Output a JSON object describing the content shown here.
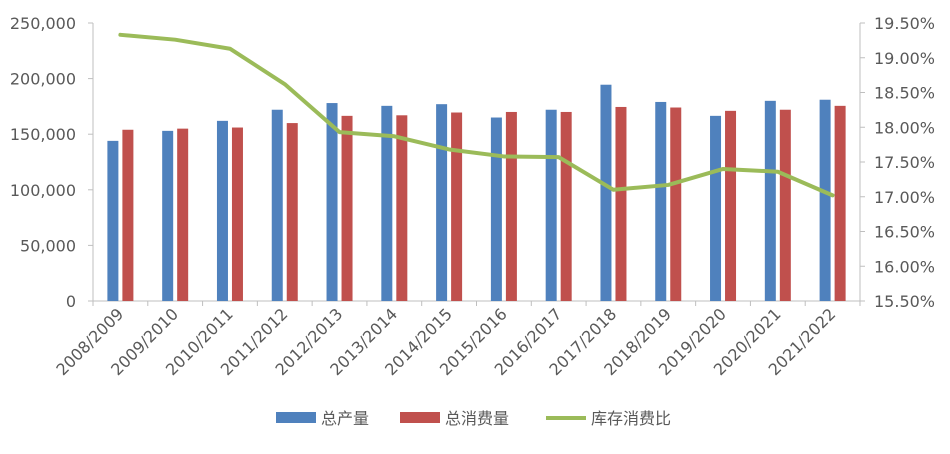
{
  "chart_data": {
    "type": "bar",
    "categories": [
      "2008/2009",
      "2009/2010",
      "2010/2011",
      "2011/2012",
      "2012/2013",
      "2013/2014",
      "2014/2015",
      "2015/2016",
      "2016/2017",
      "2017/2018",
      "2018/2019",
      "2019/2020",
      "2020/2021",
      "2021/2022"
    ],
    "series": [
      {
        "name": "总产量",
        "type": "bar",
        "axis": "left",
        "color": "#4F81BD",
        "values": [
          144000,
          153000,
          162000,
          172000,
          178000,
          175500,
          177000,
          165000,
          172000,
          194500,
          179000,
          166500,
          180000,
          181000
        ]
      },
      {
        "name": "总消费量",
        "type": "bar",
        "axis": "left",
        "color": "#C0504D",
        "values": [
          154000,
          155000,
          156000,
          160000,
          166500,
          167000,
          169500,
          170000,
          170000,
          174500,
          174000,
          171000,
          172000,
          175500
        ]
      },
      {
        "name": "库存消费比",
        "type": "line",
        "axis": "right",
        "color": "#9BBB59",
        "values": [
          19.33,
          19.26,
          19.13,
          18.62,
          17.93,
          17.87,
          17.68,
          17.58,
          17.57,
          17.1,
          17.17,
          17.4,
          17.36,
          17.02
        ]
      }
    ],
    "y_left": {
      "min": 0,
      "max": 250000,
      "ticks": [
        0,
        50000,
        100000,
        150000,
        200000,
        250000
      ],
      "tick_labels": [
        "0",
        "50,000",
        "100,000",
        "150,000",
        "200,000",
        "250,000"
      ]
    },
    "y_right": {
      "min": 15.5,
      "max": 19.5,
      "ticks": [
        15.5,
        16.0,
        16.5,
        17.0,
        17.5,
        18.0,
        18.5,
        19.0,
        19.5
      ],
      "tick_labels": [
        "15.50%",
        "16.00%",
        "16.50%",
        "17.00%",
        "17.50%",
        "18.00%",
        "18.50%",
        "19.00%",
        "19.50%"
      ]
    },
    "grid": false,
    "legend_position": "bottom"
  }
}
